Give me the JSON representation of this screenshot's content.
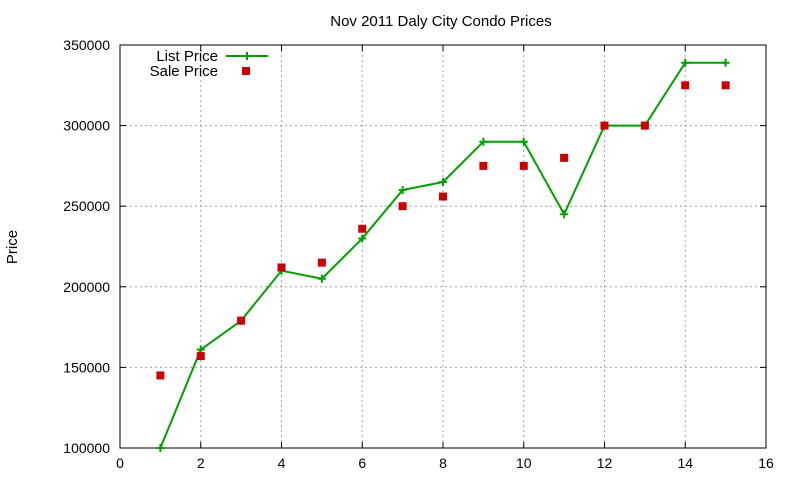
{
  "chart_data": {
    "type": "line",
    "title": "Nov 2011 Daly City Condo Prices",
    "xlabel": "",
    "ylabel": "Price",
    "xlim": [
      0,
      16
    ],
    "ylim": [
      100000,
      350000
    ],
    "xticks": [
      0,
      2,
      4,
      6,
      8,
      10,
      12,
      14,
      16
    ],
    "yticks": [
      100000,
      150000,
      200000,
      250000,
      300000,
      350000
    ],
    "grid": true,
    "legend_position": "top-left",
    "series": [
      {
        "name": "List Price",
        "style": "line-with-plus-markers",
        "color": "#00a000",
        "x": [
          1,
          2,
          3,
          4,
          5,
          6,
          7,
          8,
          9,
          10,
          11,
          12,
          13,
          14,
          15
        ],
        "y": [
          100000,
          161000,
          179000,
          210000,
          205000,
          230000,
          260000,
          265000,
          290000,
          290000,
          245000,
          300000,
          300000,
          339000,
          339000
        ]
      },
      {
        "name": "Sale Price",
        "style": "square-markers",
        "color": "#cc0000",
        "x": [
          1,
          2,
          3,
          4,
          5,
          6,
          7,
          8,
          9,
          10,
          11,
          12,
          13,
          14,
          15
        ],
        "y": [
          145000,
          157000,
          179000,
          212000,
          215000,
          236000,
          250000,
          256000,
          275000,
          275000,
          280000,
          300000,
          300000,
          325000,
          325000
        ]
      }
    ]
  }
}
